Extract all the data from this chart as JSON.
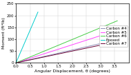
{
  "title": "",
  "xlabel": "Angular Displacement, θ (degrees)",
  "ylabel": "Moment (ft*lb)",
  "xlim": [
    0,
    4
  ],
  "ylim": [
    0,
    250
  ],
  "xticks": [
    0,
    0.5,
    1.0,
    1.5,
    2.0,
    2.5,
    3.0,
    3.5
  ],
  "yticks": [
    0,
    50,
    100,
    150,
    200,
    250
  ],
  "lines": [
    {
      "label": "Carbon #4",
      "color": "#9090b8",
      "x": [
        0,
        3.6
      ],
      "y": [
        0,
        98
      ],
      "style": "-"
    },
    {
      "label": "Carbon #5",
      "color": "#ff44ff",
      "x": [
        0,
        3.6
      ],
      "y": [
        0,
        138
      ],
      "style": "-"
    },
    {
      "label": "Carbon #6",
      "color": "#44cc44",
      "x": [
        0,
        3.6
      ],
      "y": [
        0,
        178
      ],
      "style": "-"
    },
    {
      "label": "Epoxed",
      "color": "#00cccc",
      "x": [
        0,
        0.78
      ],
      "y": [
        0,
        215
      ],
      "style": "-"
    },
    {
      "label": "Carbon #7",
      "color": "#660033",
      "x": [
        0,
        3.6
      ],
      "y": [
        0,
        90
      ],
      "style": "-"
    }
  ],
  "legend_fontsize": 4.0,
  "axis_label_fontsize": 4.5,
  "tick_fontsize": 4.0,
  "background_color": "#ffffff",
  "grid": true,
  "grid_color": "#cccccc",
  "linewidth": 0.7
}
